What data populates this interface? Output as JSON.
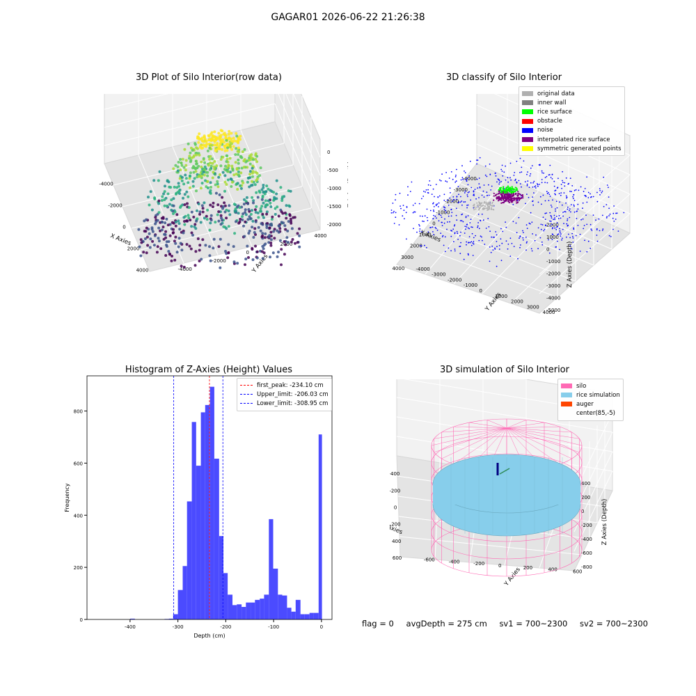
{
  "suptitle": "GAGAR01 2026-06-22 21:26:38",
  "footer": {
    "flag": "flag = 0",
    "avg_depth": "avgDepth = 275 cm",
    "sv1": "sv1 = 700~2300",
    "sv2": "sv2 = 700~2300"
  },
  "chart_data": [
    {
      "type": "scatter",
      "projection": "3d",
      "title": "3D Plot of Silo Interior(row data)",
      "xlabel": "X Axies",
      "ylabel": "Y Axies",
      "zlabel": "Z Axies (Depth)",
      "x_ticks": [
        "-4000",
        "-2000",
        "0",
        "2000",
        "4000"
      ],
      "y_ticks": [
        "-4000",
        "-2000",
        "0",
        "2000",
        "4000"
      ],
      "z_ticks": [
        "-2000",
        "-1500",
        "-1000",
        "-500",
        "0"
      ],
      "xlim": [
        -4500,
        4500
      ],
      "ylim": [
        -4500,
        4500
      ],
      "zlim": [
        -2300,
        100
      ],
      "colormap": "viridis (by depth)"
    },
    {
      "type": "scatter",
      "projection": "3d",
      "title": "3D classify of Silo Interior",
      "xlabel": "X Axies",
      "ylabel": "Y Axies",
      "zlabel": "Z Axies (Depth)",
      "x_ticks": [
        "-4000",
        "-3000",
        "-2000",
        "-1000",
        "0",
        "1000",
        "2000",
        "3000",
        "4000"
      ],
      "y_ticks": [
        "-4000",
        "-3000",
        "-2000",
        "-1000",
        "0",
        "1000",
        "2000",
        "3000",
        "4000"
      ],
      "z_ticks": [
        "-5000",
        "-4000",
        "-3000",
        "-2000",
        "-1000",
        "0",
        "1000",
        "2000"
      ],
      "legend": [
        {
          "label": "original data",
          "color": "#b0b0b0"
        },
        {
          "label": "inner wall",
          "color": "#808080"
        },
        {
          "label": "rice surface",
          "color": "#00ff00"
        },
        {
          "label": "obstacle",
          "color": "#ff0000"
        },
        {
          "label": "noise",
          "color": "#0000ff"
        },
        {
          "label": "interpolated rice surface",
          "color": "#800080"
        },
        {
          "label": "symmetric generated points",
          "color": "#ffff00"
        }
      ],
      "legend_placement": "top-right"
    },
    {
      "type": "bar",
      "title": "Histogram of Z-Axies (Height) Values",
      "xlabel": "Depth (cm)",
      "ylabel": "Frequency",
      "xlim": [
        -490,
        22
      ],
      "ylim": [
        0,
        935
      ],
      "x_ticks": [
        -400,
        -300,
        -200,
        -100,
        0
      ],
      "y_ticks": [
        0,
        200,
        400,
        600,
        800
      ],
      "bar_color": "#4b4bff",
      "bins": [
        {
          "x0": -400,
          "x1": -390,
          "value": 3
        },
        {
          "x0": -328,
          "x1": -319,
          "value": 2
        },
        {
          "x0": -319,
          "x1": -310,
          "value": 3
        },
        {
          "x0": -310,
          "x1": -300,
          "value": 20
        },
        {
          "x0": -300,
          "x1": -290,
          "value": 113
        },
        {
          "x0": -290,
          "x1": -281,
          "value": 205
        },
        {
          "x0": -281,
          "x1": -271,
          "value": 453
        },
        {
          "x0": -271,
          "x1": -262,
          "value": 758
        },
        {
          "x0": -262,
          "x1": -252,
          "value": 590
        },
        {
          "x0": -252,
          "x1": -243,
          "value": 795
        },
        {
          "x0": -243,
          "x1": -233,
          "value": 823
        },
        {
          "x0": -233,
          "x1": -224,
          "value": 893
        },
        {
          "x0": -224,
          "x1": -214,
          "value": 617
        },
        {
          "x0": -214,
          "x1": -205,
          "value": 320
        },
        {
          "x0": -205,
          "x1": -196,
          "value": 178
        },
        {
          "x0": -196,
          "x1": -186,
          "value": 95
        },
        {
          "x0": -186,
          "x1": -177,
          "value": 55
        },
        {
          "x0": -177,
          "x1": -167,
          "value": 58
        },
        {
          "x0": -167,
          "x1": -158,
          "value": 48
        },
        {
          "x0": -158,
          "x1": -148,
          "value": 65
        },
        {
          "x0": -148,
          "x1": -139,
          "value": 65
        },
        {
          "x0": -139,
          "x1": -129,
          "value": 75
        },
        {
          "x0": -129,
          "x1": -120,
          "value": 80
        },
        {
          "x0": -120,
          "x1": -110,
          "value": 95
        },
        {
          "x0": -110,
          "x1": -101,
          "value": 385
        },
        {
          "x0": -101,
          "x1": -91,
          "value": 195
        },
        {
          "x0": -91,
          "x1": -82,
          "value": 95
        },
        {
          "x0": -82,
          "x1": -72,
          "value": 92
        },
        {
          "x0": -72,
          "x1": -63,
          "value": 45
        },
        {
          "x0": -63,
          "x1": -54,
          "value": 30
        },
        {
          "x0": -54,
          "x1": -44,
          "value": 75
        },
        {
          "x0": -44,
          "x1": -35,
          "value": 20
        },
        {
          "x0": -35,
          "x1": -25,
          "value": 20
        },
        {
          "x0": -25,
          "x1": -16,
          "value": 25
        },
        {
          "x0": -16,
          "x1": -6,
          "value": 25
        },
        {
          "x0": -6,
          "x1": 1,
          "value": 710
        }
      ],
      "vlines": [
        {
          "label": "first_peak: -234.10 cm",
          "x": -234.1,
          "color": "#ff0000"
        },
        {
          "label": "Upper_limit: -206.03 cm",
          "x": -206.03,
          "color": "#0000ff"
        },
        {
          "label": "Lower_limit: -308.95 cm",
          "x": -308.95,
          "color": "#0000ff"
        }
      ],
      "legend_placement": "top-right"
    },
    {
      "type": "surface",
      "projection": "3d",
      "title": "3D simulation of Silo Interior",
      "xlabel": "X Axies",
      "ylabel": "Y Axies",
      "zlabel": "Z Axies (Depth)",
      "x_ticks": [
        "-400",
        "-200",
        "0",
        "200",
        "400",
        "600"
      ],
      "y_ticks": [
        "-600",
        "-400",
        "-200",
        "0",
        "200",
        "400",
        "600"
      ],
      "z_ticks": [
        "-800",
        "-600",
        "-400",
        "-200",
        "0",
        "200",
        "400"
      ],
      "legend": [
        {
          "label": "silo",
          "color": "#ff69b4"
        },
        {
          "label": "rice simulation",
          "color": "#87ceeb"
        },
        {
          "label": "auger",
          "color": "#ff4500"
        },
        {
          "label": "center(85,-5)",
          "color": ""
        }
      ],
      "legend_placement": "top-right"
    }
  ]
}
